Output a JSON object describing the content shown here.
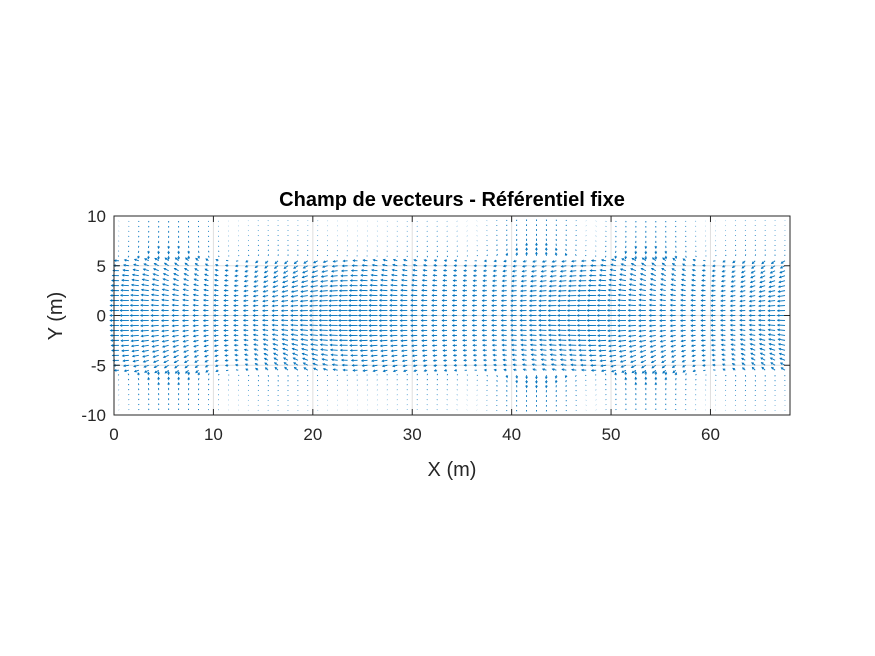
{
  "chart_data": {
    "type": "quiver",
    "title": "Champ de vecteurs - Référentiel fixe",
    "xlabel": "X (m)",
    "ylabel": "Y (m)",
    "xlim": [
      0,
      68
    ],
    "ylim": [
      -10,
      10
    ],
    "xticks": [
      0,
      10,
      20,
      30,
      40,
      50,
      60
    ],
    "yticks": [
      -10,
      -5,
      0,
      5,
      10
    ],
    "xtick_labels": [
      "0",
      "10",
      "20",
      "30",
      "40",
      "50",
      "60"
    ],
    "ytick_labels": [
      "-10",
      "-5",
      "0",
      "5",
      "10"
    ],
    "grid": true,
    "legend": "none",
    "arrow_color": "#0072BD",
    "grid_color": "#dfdfdf",
    "field": {
      "x_start": 0.5,
      "x_step": 1,
      "x_count": 68,
      "y_start": -9.5,
      "y_step": 0.5,
      "y_count": 39,
      "channel_half_width": 5.5,
      "max_vector_length": 0.95
    }
  }
}
